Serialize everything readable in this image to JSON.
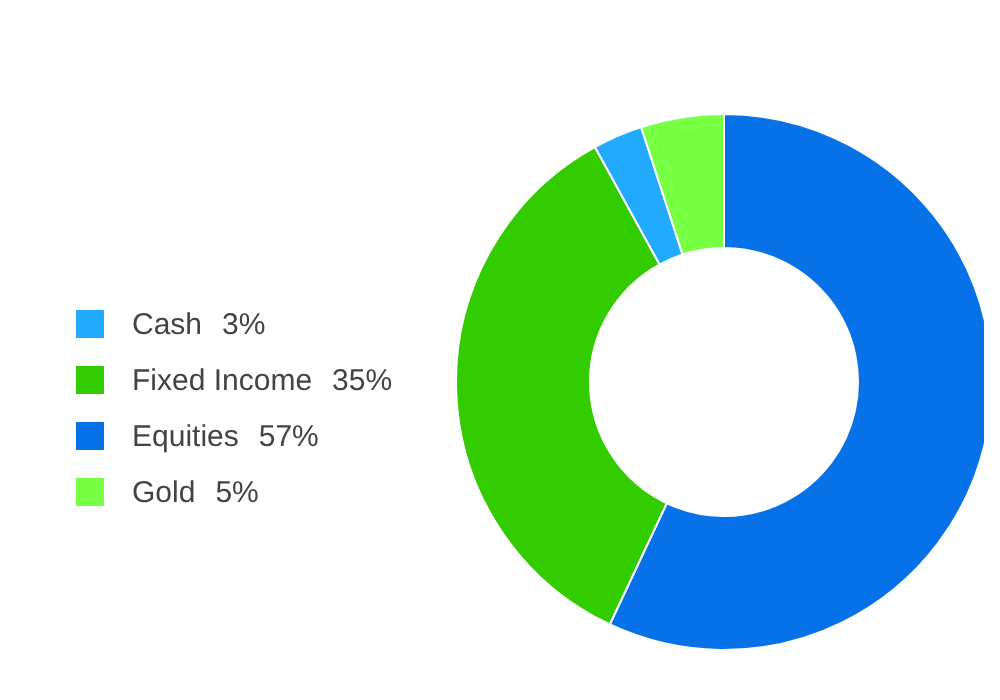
{
  "chart_data": {
    "type": "donut",
    "categories": [
      "Cash",
      "Fixed Income",
      "Equities",
      "Gold"
    ],
    "values": [
      3,
      35,
      57,
      5
    ],
    "value_labels": [
      "3%",
      "35%",
      "57%",
      "5%"
    ],
    "colors": [
      "#22aaff",
      "#33cc00",
      "#0771e8",
      "#77ff44"
    ],
    "legend": "left"
  }
}
